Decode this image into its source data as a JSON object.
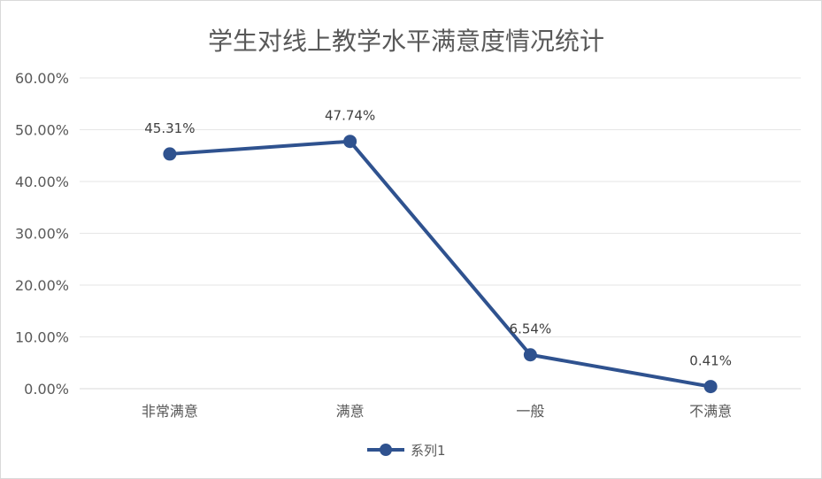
{
  "chart_data": {
    "type": "line",
    "title": "学生对线上教学水平满意度情况统计",
    "xlabel": "",
    "ylabel": "",
    "categories": [
      "非常满意",
      "满意",
      "一般",
      "不满意"
    ],
    "series": [
      {
        "name": "系列1",
        "values": [
          45.31,
          47.74,
          6.54,
          0.41
        ],
        "data_labels": [
          "45.31%",
          "47.74%",
          "6.54%",
          "0.41%"
        ],
        "color": "#2F528F"
      }
    ],
    "ylim": [
      0,
      60
    ],
    "yticks": [
      0,
      10,
      20,
      30,
      40,
      50,
      60
    ],
    "ytick_labels": [
      "0.00%",
      "10.00%",
      "20.00%",
      "30.00%",
      "40.00%",
      "50.00%",
      "60.00%"
    ],
    "grid": true,
    "legend_position": "bottom",
    "gridline_color": "#e6e6e6"
  }
}
